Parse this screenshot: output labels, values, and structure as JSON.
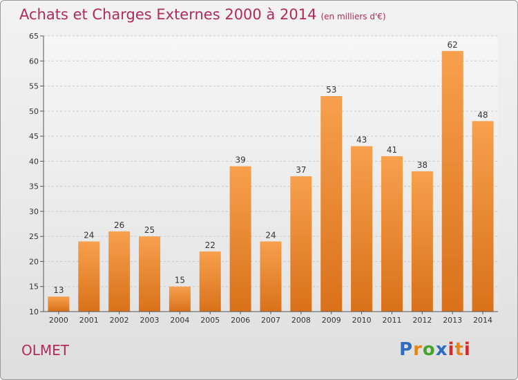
{
  "header": {
    "title": "Achats et Charges Externes 2000 à 2014",
    "subtitle": "(en milliers d'€)"
  },
  "footer": {
    "commune": "OLMET",
    "logo_text": "Proxiti"
  },
  "colors": {
    "title": "#b22a5a",
    "bar_top": "#f7a04d",
    "bar_bottom": "#d9711a"
  },
  "chart_data": {
    "type": "bar",
    "title": "Achats et Charges Externes 2000 à 2014",
    "subtitle": "(en milliers d'€)",
    "categories": [
      "2000",
      "2001",
      "2002",
      "2003",
      "2004",
      "2005",
      "2006",
      "2007",
      "2008",
      "2009",
      "2010",
      "2011",
      "2012",
      "2013",
      "2014"
    ],
    "values": [
      13,
      24,
      26,
      25,
      15,
      22,
      39,
      24,
      37,
      53,
      43,
      41,
      38,
      62,
      48
    ],
    "xlabel": "",
    "ylabel": "",
    "ylim": [
      10,
      65
    ],
    "yticks": [
      10,
      15,
      20,
      25,
      30,
      35,
      40,
      45,
      50,
      55,
      60,
      65
    ],
    "grid": true,
    "data_labels": true
  }
}
